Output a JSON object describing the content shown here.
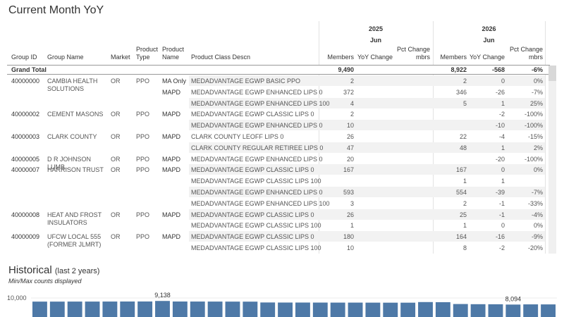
{
  "title": "Current Month YoY",
  "table": {
    "year_groups": [
      {
        "year": "2025",
        "month": "Jun"
      },
      {
        "year": "2026",
        "month": "Jun"
      }
    ],
    "headers": [
      "Group ID",
      "Group Name",
      "Market",
      "Product Type",
      "Product Name",
      "Product Class Descn",
      "Members",
      "YoY Change",
      "Pct Change mbrs",
      "Members",
      "YoY Change",
      "Pct Change mbrs"
    ],
    "grand_total": {
      "label": "Grand Total",
      "members_2025": "9,490",
      "members_2026": "8,922",
      "yoy_2026": "-568",
      "pct_2026": "-6%"
    },
    "rows": [
      {
        "group_id": "40000000",
        "group_name": "CAMBIA HEALTH SOLUTIONS",
        "market": "OR",
        "product_type": "PPO",
        "product_name": "MA Only",
        "product_class": "MEDADVANTAGE EGWP BASIC PPO",
        "members_2025": "2",
        "members_2026": "2",
        "yoy_2026": "0",
        "pct_2026": "0%"
      },
      {
        "product_name": "MAPD",
        "product_class": "MEDADVANTAGE EGWP ENHANCED LIPS 0",
        "members_2025": "372",
        "members_2026": "346",
        "yoy_2026": "-26",
        "pct_2026": "-7%"
      },
      {
        "product_class": "MEDADVANTAGE EGWP ENHANCED LIPS 100",
        "members_2025": "4",
        "members_2026": "5",
        "yoy_2026": "1",
        "pct_2026": "25%"
      },
      {
        "group_id": "40000002",
        "group_name": "CEMENT MASONS",
        "market": "OR",
        "product_type": "PPO",
        "product_name": "MAPD",
        "product_class": "MEDADVANTAGE EGWP CLASSIC LIPS 0",
        "members_2025": "2",
        "yoy_2026": "-2",
        "pct_2026": "-100%"
      },
      {
        "product_class": "MEDADVANTAGE EGWP ENHANCED LIPS 0",
        "members_2025": "10",
        "yoy_2026": "-10",
        "pct_2026": "-100%"
      },
      {
        "group_id": "40000003",
        "group_name": "CLARK COUNTY",
        "market": "OR",
        "product_type": "PPO",
        "product_name": "MAPD",
        "product_class": "CLARK COUNTY LEOFF LIPS 0",
        "members_2025": "26",
        "members_2026": "22",
        "yoy_2026": "-4",
        "pct_2026": "-15%"
      },
      {
        "product_class": "CLARK COUNTY REGULAR RETIREE LIPS 0",
        "members_2025": "47",
        "members_2026": "48",
        "yoy_2026": "1",
        "pct_2026": "2%"
      },
      {
        "group_id": "40000005",
        "group_name": "D R JOHNSON LUMB..",
        "market": "OR",
        "product_type": "PPO",
        "product_name": "MAPD",
        "product_class": "MEDADVANTAGE EGWP ENHANCED LIPS 0",
        "members_2025": "20",
        "yoy_2026": "-20",
        "pct_2026": "-100%"
      },
      {
        "group_id": "40000007",
        "group_name": "HARRISON TRUST",
        "market": "OR",
        "product_type": "PPO",
        "product_name": "MAPD",
        "product_class": "MEDADVANTAGE EGWP CLASSIC LIPS 0",
        "members_2025": "167",
        "members_2026": "167",
        "yoy_2026": "0",
        "pct_2026": "0%"
      },
      {
        "product_class": "MEDADVANTAGE EGWP CLASSIC LIPS 100",
        "members_2026": "1",
        "yoy_2026": "1"
      },
      {
        "product_class": "MEDADVANTAGE EGWP ENHANCED LIPS 0",
        "members_2025": "593",
        "members_2026": "554",
        "yoy_2026": "-39",
        "pct_2026": "-7%"
      },
      {
        "product_class": "MEDADVANTAGE EGWP ENHANCED LIPS 100",
        "members_2025": "3",
        "members_2026": "2",
        "yoy_2026": "-1",
        "pct_2026": "-33%"
      },
      {
        "group_id": "40000008",
        "group_name": "HEAT AND FROST INSULATORS",
        "market": "OR",
        "product_type": "PPO",
        "product_name": "MAPD",
        "product_class": "MEDADVANTAGE EGWP CLASSIC LIPS 0",
        "members_2025": "26",
        "members_2026": "25",
        "yoy_2026": "-1",
        "pct_2026": "-4%"
      },
      {
        "product_class": "MEDADVANTAGE EGWP CLASSIC LIPS 100",
        "members_2025": "1",
        "members_2026": "1",
        "yoy_2026": "0",
        "pct_2026": "0%"
      },
      {
        "group_id": "40000009",
        "group_name": "UFCW LOCAL 555 (FORMER JLMRT)",
        "market": "OR",
        "product_type": "PPO",
        "product_name": "MAPD",
        "product_class": "MEDADVANTAGE EGWP CLASSIC LIPS 0",
        "members_2025": "180",
        "members_2026": "164",
        "yoy_2026": "-16",
        "pct_2026": "-9%"
      },
      {
        "product_class": "MEDADVANTAGE EGWP CLASSIC LIPS 100",
        "members_2025": "10",
        "members_2026": "8",
        "yoy_2026": "-2",
        "pct_2026": "-20%"
      }
    ]
  },
  "chart_data": {
    "type": "bar",
    "title": "Historical",
    "subtitle": "(last 2 years)",
    "note": "Min/Max counts displayed",
    "categories": [
      null,
      null,
      null,
      null,
      null,
      null,
      null,
      null,
      null,
      null,
      null,
      null,
      null,
      null,
      null,
      null,
      null,
      null,
      null,
      null,
      null,
      null,
      null,
      null,
      null,
      null,
      null,
      null,
      null,
      null
    ],
    "values": [
      8950,
      8950,
      8960,
      8960,
      8970,
      8980,
      8990,
      9138,
      8980,
      8970,
      8960,
      8950,
      8940,
      8700,
      8680,
      8680,
      8670,
      8660,
      8660,
      8650,
      8640,
      8640,
      8820,
      8780,
      8250,
      8200,
      8180,
      8094,
      8150,
      8140
    ],
    "value_labels": [
      null,
      null,
      null,
      null,
      null,
      null,
      null,
      "9,138",
      null,
      null,
      null,
      null,
      null,
      null,
      null,
      null,
      null,
      null,
      null,
      null,
      null,
      null,
      null,
      null,
      null,
      null,
      null,
      "8,094",
      null,
      null
    ],
    "color": "#4e79a7",
    "ylim": [
      0,
      10000
    ],
    "yticks": [
      {
        "value": 10000,
        "label": "10,000"
      }
    ],
    "grid": true
  }
}
